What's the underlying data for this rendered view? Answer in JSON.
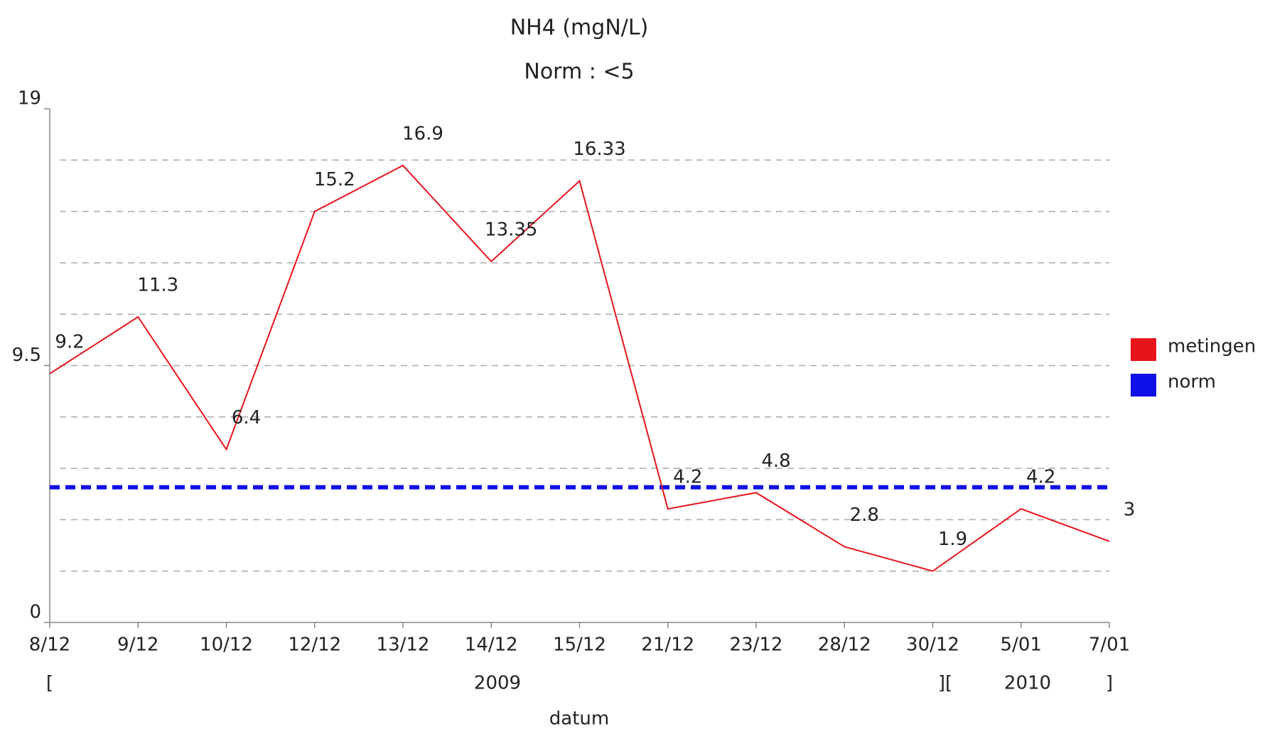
{
  "chart_data": {
    "type": "line",
    "title": "NH4 (mgN/L)",
    "subtitle": "Norm : <5",
    "x_label": "datum",
    "categories": [
      "8/12",
      "9/12",
      "10/12",
      "12/12",
      "13/12",
      "14/12",
      "15/12",
      "21/12",
      "23/12",
      "28/12",
      "30/12",
      "5/01",
      "7/01"
    ],
    "x_groups": [
      "[",
      "2009",
      "][",
      "2010",
      "]"
    ],
    "series": [
      {
        "name": "metingen",
        "color": "#e8141c",
        "values": [
          9.2,
          11.3,
          6.4,
          15.2,
          16.9,
          13.35,
          16.33,
          4.2,
          4.8,
          2.8,
          1.9,
          4.2,
          3
        ]
      },
      {
        "name": "norm",
        "color": "#1010e8",
        "values": [
          5,
          5,
          5,
          5,
          5,
          5,
          5,
          5,
          5,
          5,
          5,
          5,
          5
        ]
      }
    ],
    "ylim": [
      0,
      19
    ],
    "yticks": [
      0,
      9.5,
      19
    ],
    "ygrid": [
      1.9,
      3.8,
      5.7,
      7.6,
      9.5,
      11.4,
      13.3,
      15.2,
      17.1
    ],
    "grid": true,
    "legend": "right"
  }
}
